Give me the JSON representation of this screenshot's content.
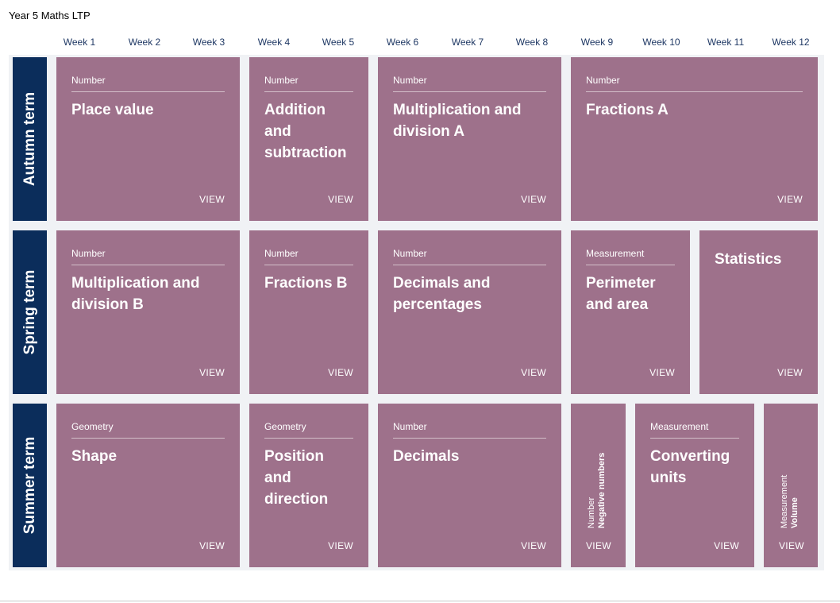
{
  "page_title": "Year 5 Maths LTP",
  "weeks": [
    "Week 1",
    "Week 2",
    "Week 3",
    "Week 4",
    "Week 5",
    "Week 6",
    "Week 7",
    "Week 8",
    "Week 9",
    "Week 10",
    "Week 11",
    "Week 12"
  ],
  "terms": {
    "autumn": "Autumn term",
    "spring": "Spring term",
    "summer": "Summer term"
  },
  "view_label": "VIEW",
  "autumn": {
    "place_value": {
      "category": "Number",
      "title": "Place value"
    },
    "addition": {
      "category": "Number",
      "title": "Addition and subtraction"
    },
    "mult_div_a": {
      "category": "Number",
      "title": "Multiplication and division A"
    },
    "fractions_a": {
      "category": "Number",
      "title": "Fractions A"
    }
  },
  "spring": {
    "mult_div_b": {
      "category": "Number",
      "title": "Multiplication and division B"
    },
    "fractions_b": {
      "category": "Number",
      "title": "Fractions B"
    },
    "decimals_pct": {
      "category": "Number",
      "title": "Decimals and percentages"
    },
    "perimeter": {
      "category": "Measurement",
      "title": "Perimeter and area"
    },
    "statistics": {
      "title": "Statistics"
    }
  },
  "summer": {
    "shape": {
      "category": "Geometry",
      "title": "Shape"
    },
    "position": {
      "category": "Geometry",
      "title": "Position and direction"
    },
    "decimals": {
      "category": "Number",
      "title": "Decimals"
    },
    "negative": {
      "category": "Number",
      "title": "Negative numbers"
    },
    "converting": {
      "category": "Measurement",
      "title": "Converting units"
    },
    "volume": {
      "category": "Measurement",
      "title": "Volume"
    }
  },
  "colors": {
    "card": "#9e718b",
    "term": "#0b2d5b",
    "week_text": "#1f3864",
    "grid_bg": "#f0f2f5"
  }
}
